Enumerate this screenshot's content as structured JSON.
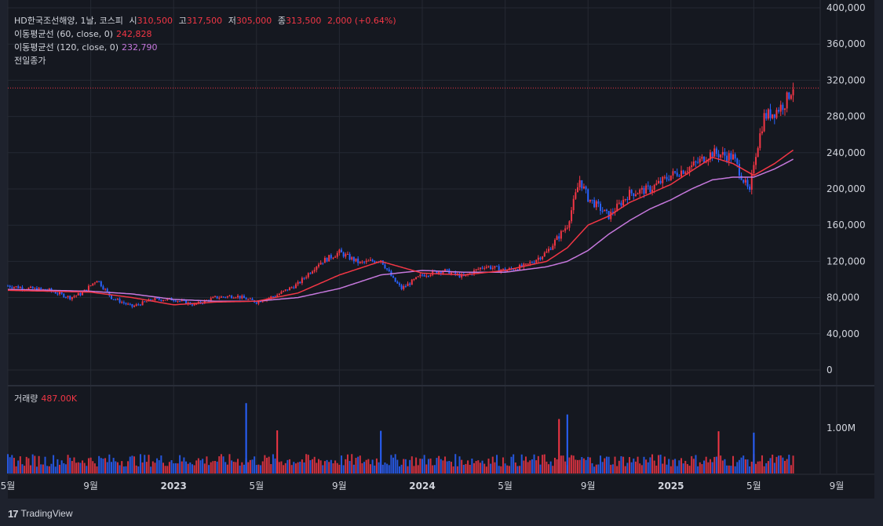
{
  "legend": {
    "symbol": "HD한국조선해양, 1날, 코스피",
    "open_label": "시",
    "open_value": "310,500",
    "high_label": "고",
    "high_value": "317,500",
    "low_label": "저",
    "low_value": "305,000",
    "close_label": "종",
    "close_value": "313,500",
    "change": "2,000 (+0.64%)",
    "ma60_label": "이동평균선 (60, close, 0)",
    "ma60_value": "242,828",
    "ma120_label": "이동평균선 (120, close, 0)",
    "ma120_value": "232,790",
    "prev_close_label": "전일종가"
  },
  "volume_pane": {
    "label": "거래량",
    "value": "487.00K",
    "axis_label": "1.00M"
  },
  "footer": {
    "logo": "17",
    "brand": "TradingView"
  },
  "colors": {
    "up": "#f23645",
    "down": "#2962ff",
    "ma60": "#f23645",
    "ma120": "#c678dd",
    "background": "#151820",
    "grid": "#252932"
  },
  "chart_data": {
    "type": "candlestick",
    "title": "HD한국조선해양, 1날, 코스피",
    "x_labels": [
      "5월",
      "9월",
      "2023",
      "5월",
      "9월",
      "2024",
      "5월",
      "9월",
      "2025",
      "5월",
      "9월"
    ],
    "x_label_months": [
      0,
      4,
      8,
      12,
      16,
      20,
      24,
      28,
      32,
      36,
      40
    ],
    "y_ticks": [
      "0",
      "40,000",
      "80,000",
      "120,000",
      "160,000",
      "200,000",
      "240,000",
      "280,000",
      "320,000",
      "360,000",
      "400,000"
    ],
    "y_tick_values": [
      0,
      40000,
      80000,
      120000,
      160000,
      200000,
      240000,
      280000,
      320000,
      360000,
      400000
    ],
    "ylim": [
      0,
      400000
    ],
    "price_path_months": [
      0,
      1,
      2,
      3,
      3.6,
      4.3,
      5,
      6,
      7,
      8,
      9,
      10,
      11,
      12,
      13,
      14,
      15,
      16,
      17,
      18,
      18.6,
      19,
      20,
      21,
      22,
      23,
      24,
      25,
      26,
      27,
      27.6,
      28,
      29,
      30,
      31,
      32,
      33,
      34,
      35,
      35.8,
      36,
      36.5,
      37,
      37.5,
      37.9
    ],
    "price_path_close": [
      93000,
      90000,
      88000,
      80000,
      85000,
      100000,
      80000,
      70000,
      78000,
      78000,
      72000,
      80000,
      82000,
      75000,
      83000,
      95000,
      118000,
      130000,
      118000,
      122000,
      100000,
      90000,
      105000,
      110000,
      103000,
      115000,
      110000,
      115000,
      130000,
      160000,
      210000,
      190000,
      170000,
      195000,
      200000,
      215000,
      225000,
      240000,
      235000,
      195000,
      230000,
      280000,
      285000,
      295000,
      313500
    ],
    "ma60_months": [
      0,
      2,
      4,
      6,
      8,
      10,
      12,
      14,
      16,
      18,
      20,
      22,
      24,
      26,
      27,
      28,
      29,
      30,
      31,
      32,
      33,
      34,
      35,
      36,
      37,
      37.9
    ],
    "ma60_values": [
      88000,
      87000,
      86000,
      80000,
      72000,
      75000,
      76000,
      85000,
      105000,
      120000,
      107000,
      105000,
      110000,
      120000,
      135000,
      160000,
      170000,
      185000,
      195000,
      205000,
      220000,
      235000,
      228000,
      215000,
      228000,
      242828
    ],
    "ma120_months": [
      0,
      2,
      4,
      6,
      8,
      10,
      12,
      14,
      16,
      18,
      20,
      22,
      24,
      26,
      27,
      28,
      29,
      30,
      31,
      32,
      33,
      34,
      35,
      36,
      37,
      37.9
    ],
    "ma120_values": [
      89000,
      88000,
      87000,
      84000,
      78000,
      76000,
      76000,
      80000,
      90000,
      105000,
      110000,
      108000,
      108000,
      114000,
      120000,
      132000,
      150000,
      165000,
      178000,
      188000,
      200000,
      210000,
      213000,
      213000,
      222000,
      232790
    ],
    "prev_close": 311500,
    "last_volume": 487000,
    "volume_axis_ticks": [
      "1.00M"
    ],
    "volume_axis_values": [
      1000000
    ],
    "volume_spikes": [
      {
        "month": 11.5,
        "volume": 1550000
      },
      {
        "month": 26.6,
        "volume": 1200000
      },
      {
        "month": 27.0,
        "volume": 1300000
      },
      {
        "month": 13.0,
        "volume": 950000
      },
      {
        "month": 18.0,
        "volume": 940000
      },
      {
        "month": 34.3,
        "volume": 930000
      },
      {
        "month": 36.0,
        "volume": 900000
      }
    ]
  }
}
